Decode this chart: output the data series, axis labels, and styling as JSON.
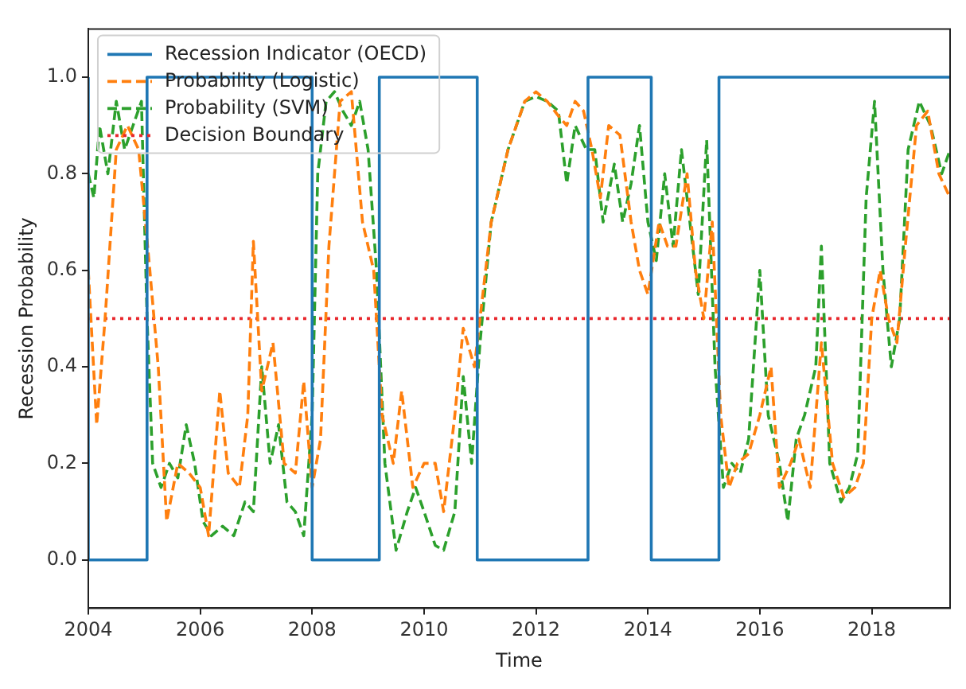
{
  "chart_data": {
    "type": "line",
    "xlabel": "Time",
    "ylabel": "Recession Probability",
    "xlim": [
      2004,
      2019.4
    ],
    "xticks": [
      2004,
      2006,
      2008,
      2010,
      2012,
      2014,
      2016,
      2018
    ],
    "ylim": [
      -0.1,
      1.1
    ],
    "yticks": [
      {
        "value": 0,
        "label": "0.0"
      },
      {
        "value": 0.2,
        "label": "0.2"
      },
      {
        "value": 0.4,
        "label": "0.4"
      },
      {
        "value": 0.6,
        "label": "0.6"
      },
      {
        "value": 0.8,
        "label": "0.8"
      },
      {
        "value": 1,
        "label": "1.0"
      }
    ],
    "grid": false,
    "legend": "top left",
    "series": [
      {
        "name": "Recession Indicator (OECD)",
        "type": "step",
        "color": "#1f77b4",
        "line_style": "solid",
        "x": [
          2004,
          2005.05,
          2008,
          2009.2,
          2010.95,
          2012.93,
          2014.06,
          2015.27,
          2017.55,
          2019.4
        ],
        "values": [
          1,
          0,
          1,
          0,
          1,
          0,
          1,
          0,
          1,
          1
        ]
      },
      {
        "name": "Probability (Logistic)",
        "type": "line",
        "color": "#ff7f0e",
        "line_style": "dashed",
        "x": [
          2004,
          2004.15,
          2004.3,
          2004.5,
          2004.7,
          2004.9,
          2005.1,
          2005.25,
          2005.4,
          2005.6,
          2005.8,
          2006,
          2006.15,
          2006.35,
          2006.5,
          2006.7,
          2006.85,
          2006.95,
          2007.1,
          2007.3,
          2007.5,
          2007.7,
          2007.85,
          2008,
          2008.15,
          2008.3,
          2008.5,
          2008.7,
          2008.9,
          2009.1,
          2009.25,
          2009.45,
          2009.6,
          2009.8,
          2010,
          2010.2,
          2010.35,
          2010.55,
          2010.7,
          2010.9,
          2011,
          2011.2,
          2011.5,
          2011.8,
          2012,
          2012.2,
          2012.4,
          2012.55,
          2012.7,
          2012.85,
          2013,
          2013.15,
          2013.3,
          2013.5,
          2013.7,
          2013.85,
          2014,
          2014.2,
          2014.35,
          2014.5,
          2014.7,
          2014.85,
          2015,
          2015.15,
          2015.3,
          2015.45,
          2015.6,
          2015.8,
          2016,
          2016.2,
          2016.35,
          2016.55,
          2016.7,
          2016.9,
          2017.1,
          2017.3,
          2017.5,
          2017.7,
          2017.85,
          2018,
          2018.15,
          2018.3,
          2018.45,
          2018.6,
          2018.8,
          2019,
          2019.2,
          2019.4
        ],
        "values": [
          0.6,
          0.28,
          0.5,
          0.85,
          0.9,
          0.85,
          0.6,
          0.4,
          0.08,
          0.2,
          0.18,
          0.15,
          0.05,
          0.35,
          0.18,
          0.15,
          0.3,
          0.66,
          0.35,
          0.45,
          0.2,
          0.18,
          0.37,
          0.15,
          0.25,
          0.65,
          0.95,
          0.97,
          0.7,
          0.6,
          0.3,
          0.2,
          0.35,
          0.15,
          0.2,
          0.2,
          0.1,
          0.3,
          0.48,
          0.4,
          0.5,
          0.7,
          0.85,
          0.95,
          0.97,
          0.95,
          0.92,
          0.9,
          0.95,
          0.93,
          0.85,
          0.75,
          0.9,
          0.88,
          0.7,
          0.6,
          0.55,
          0.7,
          0.65,
          0.65,
          0.8,
          0.6,
          0.5,
          0.7,
          0.3,
          0.15,
          0.2,
          0.22,
          0.3,
          0.4,
          0.15,
          0.2,
          0.25,
          0.15,
          0.45,
          0.2,
          0.13,
          0.15,
          0.2,
          0.5,
          0.6,
          0.5,
          0.45,
          0.65,
          0.9,
          0.93,
          0.8,
          0.75
        ]
      },
      {
        "name": "Probability (SVM)",
        "type": "line",
        "color": "#2ca02c",
        "line_style": "dashed",
        "x": [
          2004,
          2004.1,
          2004.2,
          2004.35,
          2004.5,
          2004.65,
          2004.8,
          2004.95,
          2005.05,
          2005.15,
          2005.3,
          2005.45,
          2005.6,
          2005.75,
          2005.9,
          2006.05,
          2006.2,
          2006.4,
          2006.6,
          2006.8,
          2006.95,
          2007.1,
          2007.25,
          2007.4,
          2007.55,
          2007.7,
          2007.85,
          2008,
          2008.1,
          2008.25,
          2008.4,
          2008.55,
          2008.7,
          2008.85,
          2009,
          2009.15,
          2009.3,
          2009.5,
          2009.7,
          2009.85,
          2010,
          2010.2,
          2010.35,
          2010.55,
          2010.7,
          2010.85,
          2011,
          2011.2,
          2011.5,
          2011.8,
          2012,
          2012.2,
          2012.4,
          2012.55,
          2012.7,
          2012.9,
          2013.05,
          2013.2,
          2013.4,
          2013.55,
          2013.7,
          2013.85,
          2014,
          2014.15,
          2014.3,
          2014.45,
          2014.6,
          2014.75,
          2014.9,
          2015.05,
          2015.2,
          2015.35,
          2015.5,
          2015.65,
          2015.8,
          2016,
          2016.15,
          2016.35,
          2016.5,
          2016.65,
          2016.8,
          2017,
          2017.1,
          2017.25,
          2017.45,
          2017.6,
          2017.75,
          2017.9,
          2018.05,
          2018.2,
          2018.35,
          2018.5,
          2018.65,
          2018.85,
          2019.05,
          2019.25,
          2019.4
        ],
        "values": [
          0.8,
          0.75,
          0.9,
          0.8,
          0.95,
          0.85,
          0.9,
          0.95,
          0.5,
          0.2,
          0.15,
          0.2,
          0.17,
          0.28,
          0.2,
          0.08,
          0.05,
          0.07,
          0.05,
          0.12,
          0.1,
          0.4,
          0.2,
          0.28,
          0.12,
          0.1,
          0.05,
          0.3,
          0.8,
          0.95,
          0.97,
          0.93,
          0.9,
          0.95,
          0.85,
          0.6,
          0.2,
          0.02,
          0.1,
          0.15,
          0.1,
          0.03,
          0.02,
          0.1,
          0.38,
          0.2,
          0.45,
          0.7,
          0.85,
          0.95,
          0.96,
          0.95,
          0.93,
          0.78,
          0.9,
          0.85,
          0.85,
          0.7,
          0.82,
          0.7,
          0.78,
          0.9,
          0.7,
          0.62,
          0.8,
          0.65,
          0.85,
          0.7,
          0.55,
          0.87,
          0.4,
          0.15,
          0.2,
          0.18,
          0.25,
          0.6,
          0.3,
          0.2,
          0.08,
          0.25,
          0.3,
          0.4,
          0.65,
          0.2,
          0.12,
          0.15,
          0.22,
          0.75,
          0.95,
          0.6,
          0.4,
          0.5,
          0.85,
          0.95,
          0.9,
          0.8,
          0.85
        ]
      }
    ],
    "ref_lines": [
      {
        "axis": "y",
        "value": 0.5,
        "label": "Decision Boundary",
        "color": "#e8272c",
        "line_style": "dotted"
      }
    ]
  }
}
